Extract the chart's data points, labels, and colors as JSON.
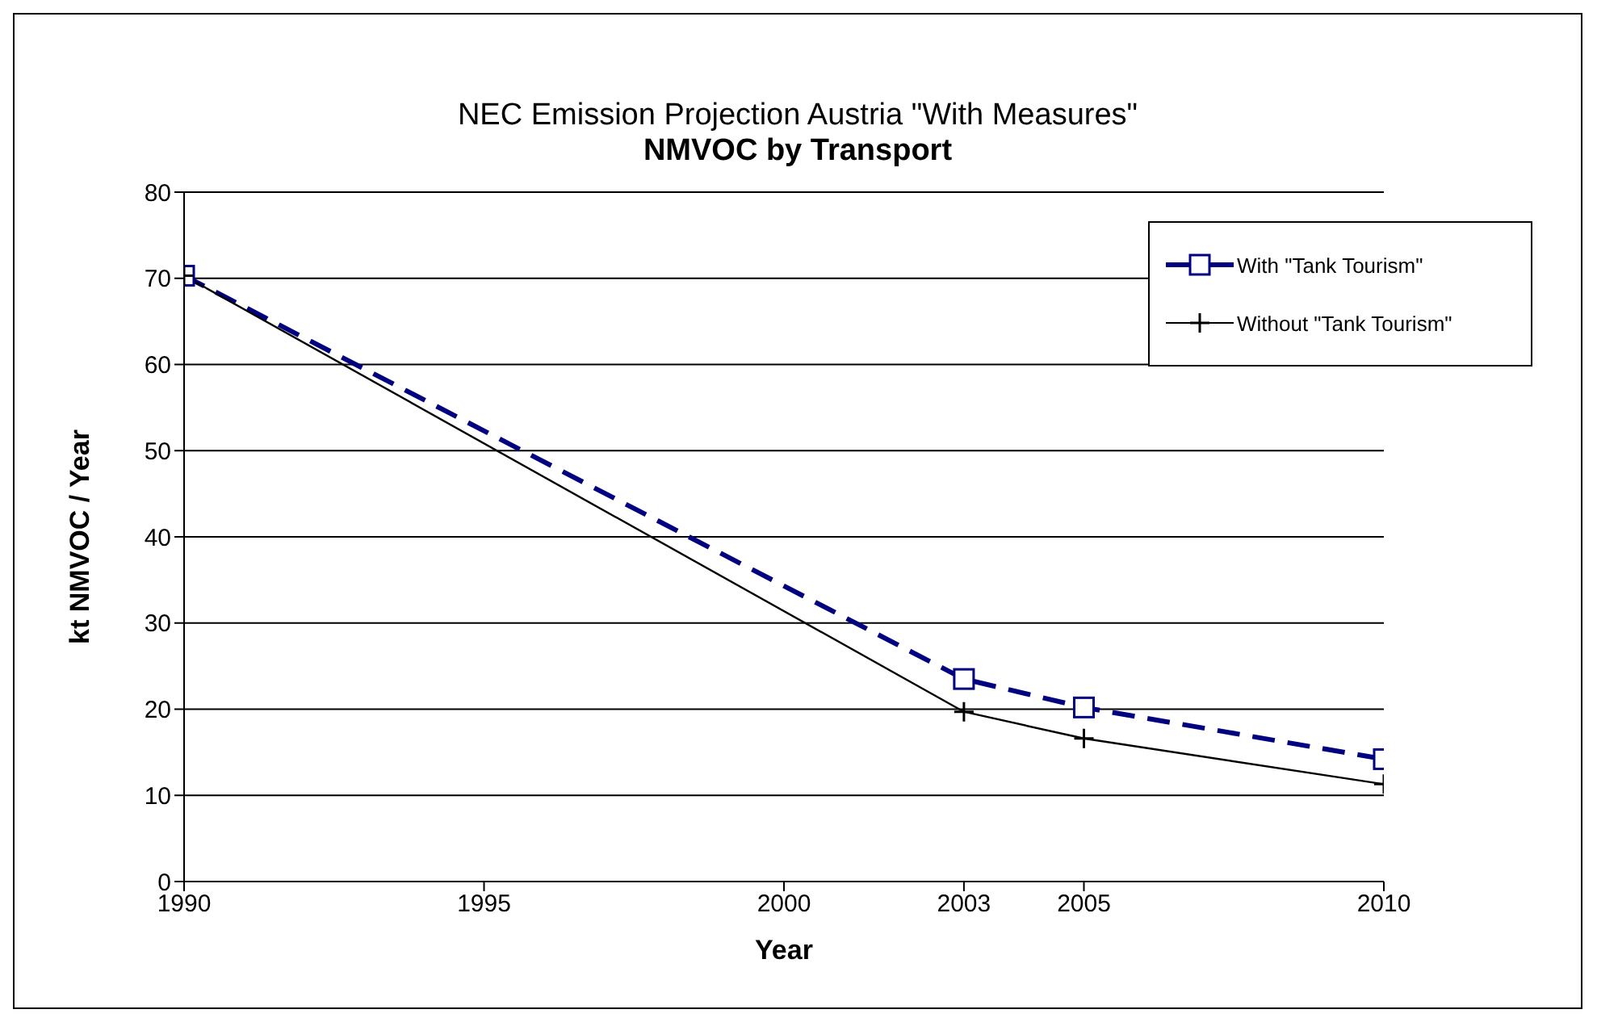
{
  "chart_data": {
    "type": "line",
    "title": "NEC Emission Projection Austria \"With Measures\"",
    "subtitle": "NMVOC by Transport",
    "xlabel": "Year",
    "ylabel": "kt NMVOC / Year",
    "x": [
      1990,
      2003,
      2005,
      2010
    ],
    "xlim": [
      1990,
      2010
    ],
    "xticks": [
      1990,
      1995,
      2000,
      2003,
      2005,
      2010
    ],
    "ylim": [
      0,
      80
    ],
    "yticks": [
      0,
      10,
      20,
      30,
      40,
      50,
      60,
      70,
      80
    ],
    "grid": "y",
    "legend": "top right",
    "series": [
      {
        "name": "With \"Tank Tourism\"",
        "color": "#000080",
        "values": [
          70.3,
          23.5,
          20.2,
          14.2
        ],
        "marker": "square",
        "line_style": "dashed"
      },
      {
        "name": "Without \"Tank Tourism\"",
        "color": "#000000",
        "values": [
          70.3,
          19.7,
          16.6,
          11.3
        ],
        "marker": "cross",
        "line_style": "solid"
      }
    ]
  }
}
